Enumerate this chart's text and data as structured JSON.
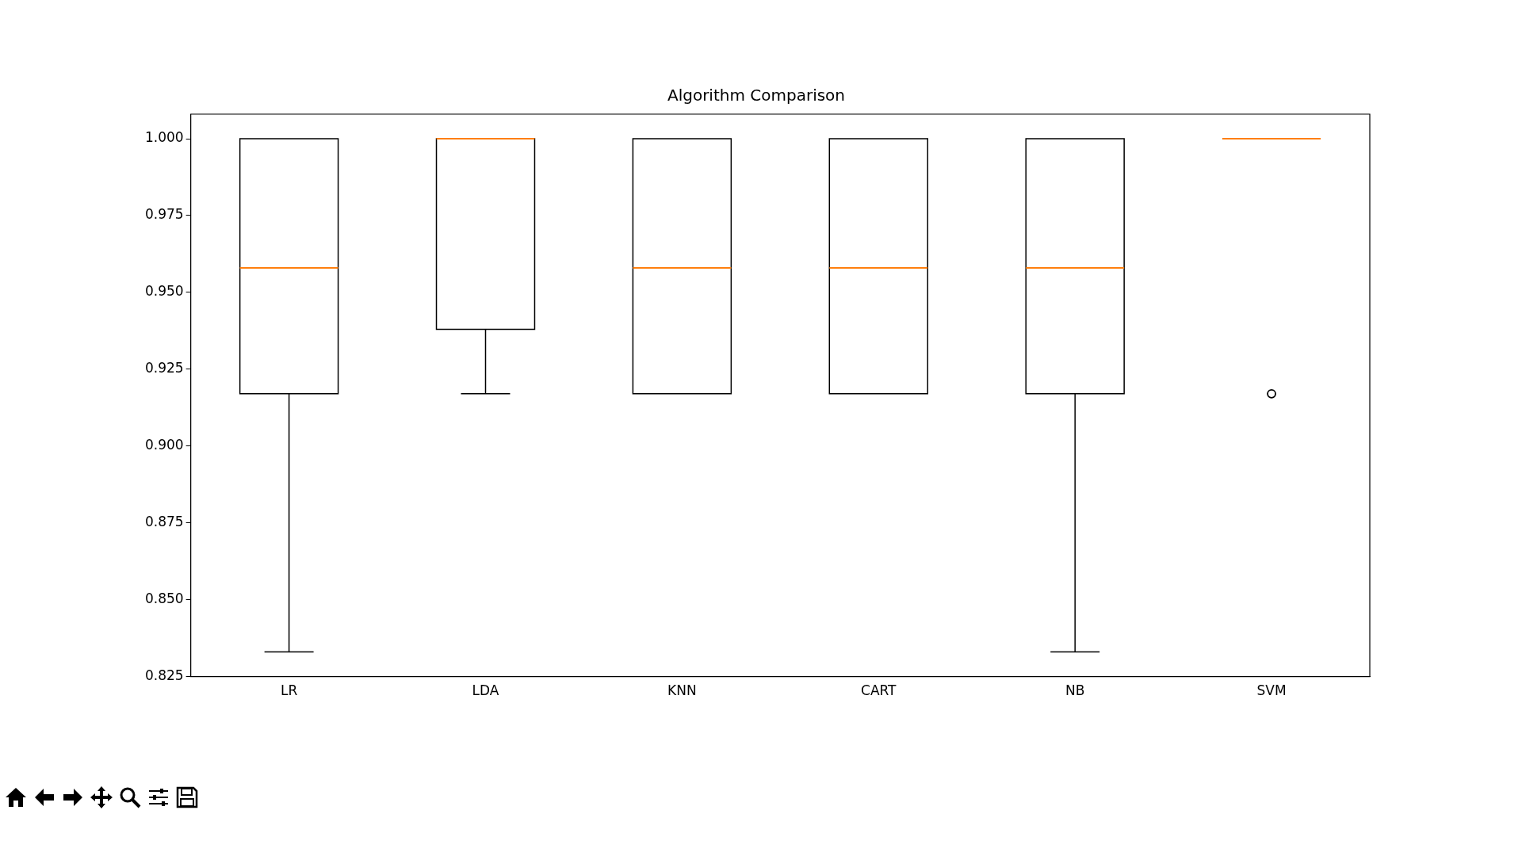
{
  "chart_data": {
    "type": "box",
    "title": "Algorithm Comparison",
    "categories": [
      "LR",
      "LDA",
      "KNN",
      "CART",
      "NB",
      "SVM"
    ],
    "boxes": [
      {
        "low": 0.833,
        "q1": 0.917,
        "median": 0.958,
        "q3": 1.0,
        "high": 1.0
      },
      {
        "low": 0.917,
        "q1": 0.938,
        "median": 1.0,
        "q3": 1.0,
        "high": 1.0
      },
      {
        "low": 0.917,
        "q1": 0.917,
        "median": 0.958,
        "q3": 1.0,
        "high": 1.0
      },
      {
        "low": 0.917,
        "q1": 0.917,
        "median": 0.958,
        "q3": 1.0,
        "high": 1.0
      },
      {
        "low": 0.833,
        "q1": 0.917,
        "median": 0.958,
        "q3": 1.0,
        "high": 1.0
      },
      {
        "low": 1.0,
        "q1": 1.0,
        "median": 1.0,
        "q3": 1.0,
        "high": 1.0,
        "outliers": [
          0.917
        ]
      }
    ],
    "color": "#000000",
    "ylim": [
      0.825,
      1.008
    ],
    "yticks": [
      {
        "value": 0.825,
        "label": "0.825"
      },
      {
        "value": 0.85,
        "label": "0.850"
      },
      {
        "value": 0.875,
        "label": "0.875"
      },
      {
        "value": 0.9,
        "label": "0.900"
      },
      {
        "value": 0.925,
        "label": "0.925"
      },
      {
        "value": 0.95,
        "label": "0.950"
      },
      {
        "value": 0.975,
        "label": "0.975"
      },
      {
        "value": 1.0,
        "label": "1.000"
      }
    ],
    "grid": false,
    "legend": false
  }
}
